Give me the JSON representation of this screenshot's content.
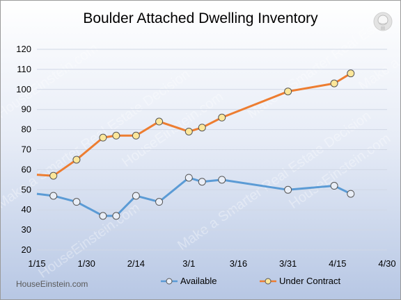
{
  "brand": "HouseEinstein.com",
  "watermark": "Make a Smarter Real Estate Decision",
  "watermark_brand": "HouseEinstein.com",
  "logo_icon": "lightbulb-head-icon",
  "chart_data": {
    "type": "line",
    "title": "Boulder Attached Dwelling Inventory",
    "xlabel": "",
    "ylabel": "",
    "x_ticks": [
      "1/15",
      "1/30",
      "2/14",
      "3/1",
      "3/16",
      "3/31",
      "4/15",
      "4/30"
    ],
    "ylim": [
      20,
      120
    ],
    "y_ticks": [
      20,
      30,
      40,
      50,
      60,
      70,
      80,
      90,
      100,
      110,
      120
    ],
    "grid": true,
    "legend_position": "bottom",
    "series": [
      {
        "name": "Available",
        "color": "#5b9bd5",
        "x": [
          "1/15",
          "1/20",
          "1/27",
          "2/4",
          "2/8",
          "2/14",
          "2/21",
          "3/1",
          "3/5",
          "3/11",
          "3/31",
          "4/14",
          "4/19"
        ],
        "values": [
          48,
          47,
          44,
          37,
          37,
          47,
          44,
          56,
          54,
          55,
          50,
          52,
          48
        ]
      },
      {
        "name": "Under Contract",
        "color": "#ed7d31",
        "x": [
          "1/15",
          "1/20",
          "1/27",
          "2/4",
          "2/8",
          "2/14",
          "2/21",
          "3/1",
          "3/5",
          "3/11",
          "3/31",
          "4/14",
          "4/19"
        ],
        "values": [
          57.5,
          57,
          65,
          76,
          77,
          77,
          84,
          79,
          81,
          86,
          99,
          103,
          108
        ]
      }
    ]
  }
}
